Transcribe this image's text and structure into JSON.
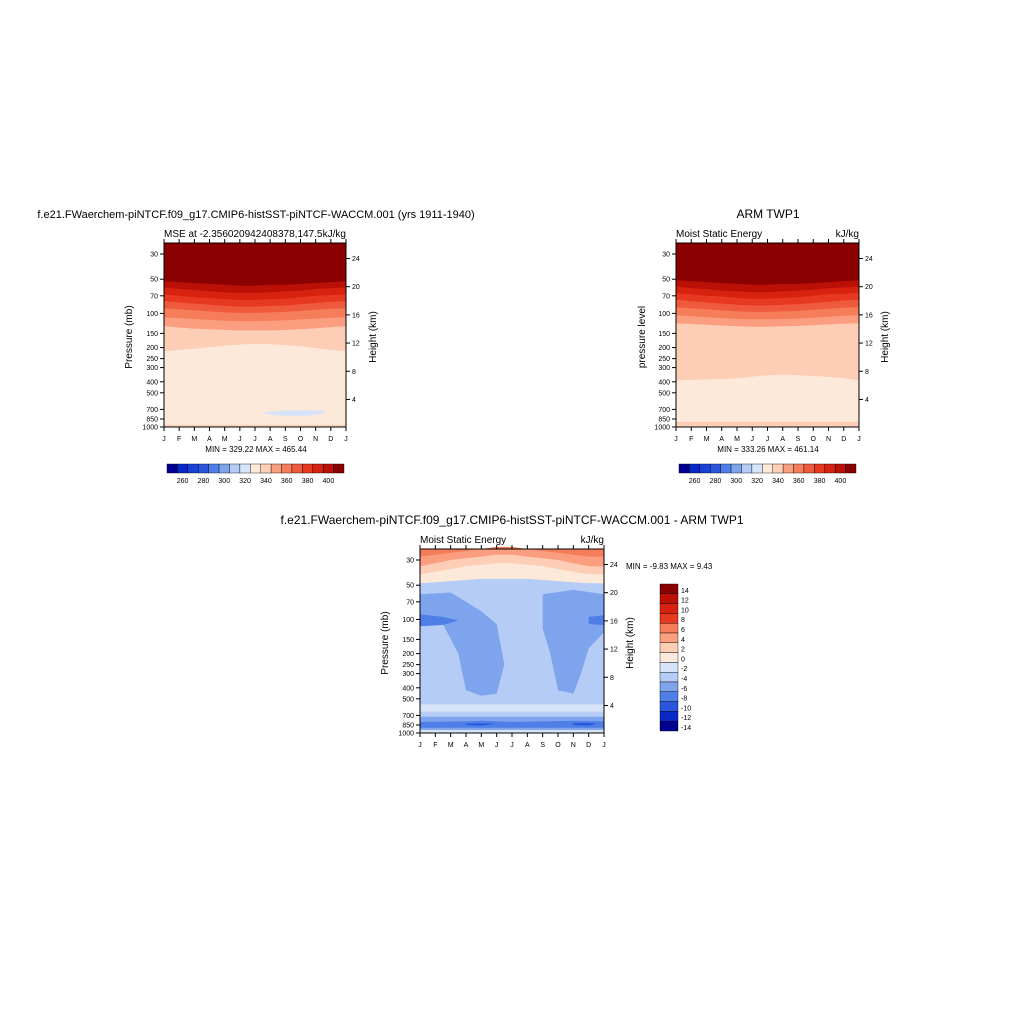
{
  "panels": [
    {
      "id": "model",
      "title": "f.e21.FWaerchem-piNTCF.f09_g17.CMIP6-histSST-piNTCF-WACCM.001 (yrs 1911-1940)",
      "left_string": "MSE at -2.356020942408378,147.5",
      "right_string": "kJ/kg",
      "ylabel": "Pressure (mb)",
      "ylabel_right": "Height (km)",
      "minmax": "MIN = 329.22 MAX = 465.44"
    },
    {
      "id": "obs",
      "title": "ARM TWP1",
      "left_string": "Moist Static Energy",
      "right_string": "kJ/kg",
      "ylabel": "pressure level",
      "ylabel_right": "Height (km)",
      "minmax": "MIN = 333.26 MAX = 461.14"
    },
    {
      "id": "diff",
      "title": "f.e21.FWaerchem-piNTCF.f09_g17.CMIP6-histSST-piNTCF-WACCM.001 - ARM TWP1",
      "left_string": "Moist Static Energy",
      "right_string": "kJ/kg",
      "ylabel": "Pressure (mb)",
      "ylabel_right": "Height (km)",
      "minmax": "MIN =  -9.83 MAX =   9.43"
    }
  ],
  "chart_data": [
    {
      "type": "contour",
      "panel": "model",
      "x": [
        "J",
        "F",
        "M",
        "A",
        "M",
        "J",
        "J",
        "A",
        "S",
        "O",
        "N",
        "D",
        "J"
      ],
      "y_ticks": [
        30,
        50,
        70,
        100,
        150,
        200,
        250,
        300,
        400,
        500,
        700,
        850,
        1000
      ],
      "y_ticks_right": [
        24,
        20,
        16,
        12,
        8,
        4
      ],
      "levels": [
        260,
        270,
        280,
        290,
        300,
        310,
        320,
        330,
        340,
        350,
        360,
        370,
        380,
        390,
        400
      ],
      "layers_top_pressure": [
        {
          "color": "#fde9d9",
          "top": 1000
        },
        {
          "color": "#fdcdb5",
          "top": [
            215,
            210,
            205,
            198,
            192,
            188,
            185,
            187,
            190,
            195,
            202,
            210,
            215
          ]
        },
        {
          "color": "#fb9e7f",
          "top": [
            130,
            133,
            136,
            138,
            140,
            141,
            141,
            141,
            140,
            138,
            135,
            132,
            130
          ]
        },
        {
          "color": "#f57d5a",
          "top": [
            108,
            110,
            112,
            114,
            116,
            117,
            117,
            116,
            115,
            113,
            111,
            109,
            108
          ]
        },
        {
          "color": "#ef5a3d",
          "top": [
            90,
            92,
            94,
            96,
            98,
            99,
            99,
            98,
            97,
            95,
            93,
            91,
            90
          ]
        },
        {
          "color": "#e6391f",
          "top": [
            78,
            80,
            82,
            84,
            86,
            87,
            87,
            86,
            85,
            83,
            81,
            79,
            78
          ]
        },
        {
          "color": "#d7220f",
          "top": [
            68,
            70,
            72,
            73,
            75,
            76,
            76,
            75,
            74,
            72,
            70,
            69,
            68
          ]
        },
        {
          "color": "#bb1005",
          "top": [
            59,
            61,
            62,
            64,
            65,
            66,
            66,
            65,
            64,
            63,
            61,
            60,
            59
          ]
        },
        {
          "color": "#8b0000",
          "top": [
            52,
            53,
            54,
            55,
            56,
            57,
            57,
            56,
            56,
            55,
            54,
            53,
            52
          ]
        }
      ],
      "colorbar": {
        "labels": [
          "260",
          "280",
          "300",
          "320",
          "340",
          "360",
          "380",
          "400"
        ]
      }
    },
    {
      "type": "contour",
      "panel": "obs",
      "x": [
        "J",
        "F",
        "M",
        "A",
        "M",
        "J",
        "J",
        "A",
        "S",
        "O",
        "N",
        "D",
        "J"
      ],
      "y_ticks": [
        30,
        50,
        70,
        100,
        150,
        200,
        250,
        300,
        400,
        500,
        700,
        850,
        1000
      ],
      "y_ticks_right": [
        24,
        20,
        16,
        12,
        8,
        4
      ],
      "levels": [
        260,
        270,
        280,
        290,
        300,
        310,
        320,
        330,
        340,
        350,
        360,
        370,
        380,
        390,
        400
      ],
      "layers_top_pressure": [
        {
          "color": "#fde9d9",
          "top": 1000
        },
        {
          "color": "#fdcdb5",
          "top": [
            390,
            385,
            382,
            378,
            372,
            360,
            350,
            345,
            350,
            355,
            362,
            372,
            390
          ]
        },
        {
          "color": "#fb9e7f",
          "top": [
            122,
            124,
            126,
            128,
            130,
            131,
            131,
            130,
            129,
            127,
            125,
            123,
            122
          ]
        },
        {
          "color": "#f57d5a",
          "top": [
            104,
            106,
            108,
            110,
            112,
            113,
            113,
            112,
            111,
            109,
            107,
            105,
            104
          ]
        },
        {
          "color": "#ef5a3d",
          "top": [
            88,
            90,
            92,
            94,
            96,
            97,
            97,
            96,
            95,
            93,
            91,
            89,
            88
          ]
        },
        {
          "color": "#e6391f",
          "top": [
            76,
            78,
            80,
            82,
            84,
            85,
            85,
            84,
            83,
            81,
            79,
            77,
            76
          ]
        },
        {
          "color": "#d7220f",
          "top": [
            66,
            68,
            70,
            71,
            73,
            74,
            74,
            73,
            72,
            70,
            68,
            67,
            66
          ]
        },
        {
          "color": "#bb1005",
          "top": [
            58,
            60,
            61,
            63,
            64,
            65,
            65,
            64,
            63,
            62,
            60,
            59,
            58
          ]
        },
        {
          "color": "#8b0000",
          "top": [
            51,
            52,
            53,
            54,
            55,
            56,
            56,
            55,
            55,
            54,
            53,
            52,
            51
          ]
        }
      ],
      "colorbar": {
        "labels": [
          "260",
          "280",
          "300",
          "320",
          "340",
          "360",
          "380",
          "400"
        ]
      }
    },
    {
      "type": "contour",
      "panel": "diff",
      "x": [
        "J",
        "F",
        "M",
        "A",
        "M",
        "J",
        "J",
        "A",
        "S",
        "O",
        "N",
        "D",
        "J"
      ],
      "y_ticks": [
        30,
        50,
        70,
        100,
        150,
        200,
        250,
        300,
        400,
        500,
        700,
        850,
        1000
      ],
      "y_ticks_right": [
        24,
        20,
        16,
        12,
        8,
        4
      ],
      "levels": [
        -14,
        -12,
        -10,
        -8,
        -6,
        -4,
        -2,
        0,
        2,
        4,
        6,
        8,
        10,
        12,
        14
      ],
      "background": "#b4ccf6",
      "layers_top_pressure": [
        {
          "color": "#fde9d9",
          "top": [
            48,
            47,
            46,
            45,
            44,
            44,
            44,
            44,
            45,
            46,
            47,
            48,
            48
          ]
        },
        {
          "color": "#fdcdb5",
          "top": [
            40,
            38,
            36,
            34,
            33,
            32,
            32,
            33,
            34,
            36,
            38,
            40,
            40
          ]
        },
        {
          "color": "#fb9e7f",
          "top": [
            34,
            32,
            30,
            29,
            28,
            27,
            27,
            28,
            29,
            30,
            32,
            34,
            34
          ]
        },
        {
          "color": "#f57d5a",
          "top": [
            28,
            27,
            26,
            25,
            24,
            23,
            23,
            24,
            25,
            26,
            27,
            28,
            28
          ]
        }
      ],
      "colorbar": {
        "labels": [
          "14",
          "12",
          "10",
          "8",
          "6",
          "4",
          "2",
          "0",
          "-2",
          "-4",
          "-6",
          "-8",
          "-10",
          "-12",
          "-14"
        ],
        "colors": [
          "#8b0000",
          "#bb1005",
          "#d7220f",
          "#e6391f",
          "#f57d5a",
          "#fb9e7f",
          "#fdcdb5",
          "#fde9d9",
          "#d6e3f8",
          "#b4ccf6",
          "#7ea4ee",
          "#4f7fe6",
          "#2a55dc",
          "#0a28c8",
          "#000090"
        ]
      }
    }
  ],
  "colorbar_palette": [
    "#000090",
    "#0a28c8",
    "#1a40d8",
    "#2a55dc",
    "#4f7fe6",
    "#7ea4ee",
    "#b4ccf6",
    "#d6e3f8",
    "#fde9d9",
    "#fdcdb5",
    "#fb9e7f",
    "#f57d5a",
    "#ef5a3d",
    "#e6391f",
    "#d7220f",
    "#bb1005",
    "#8b0000"
  ]
}
